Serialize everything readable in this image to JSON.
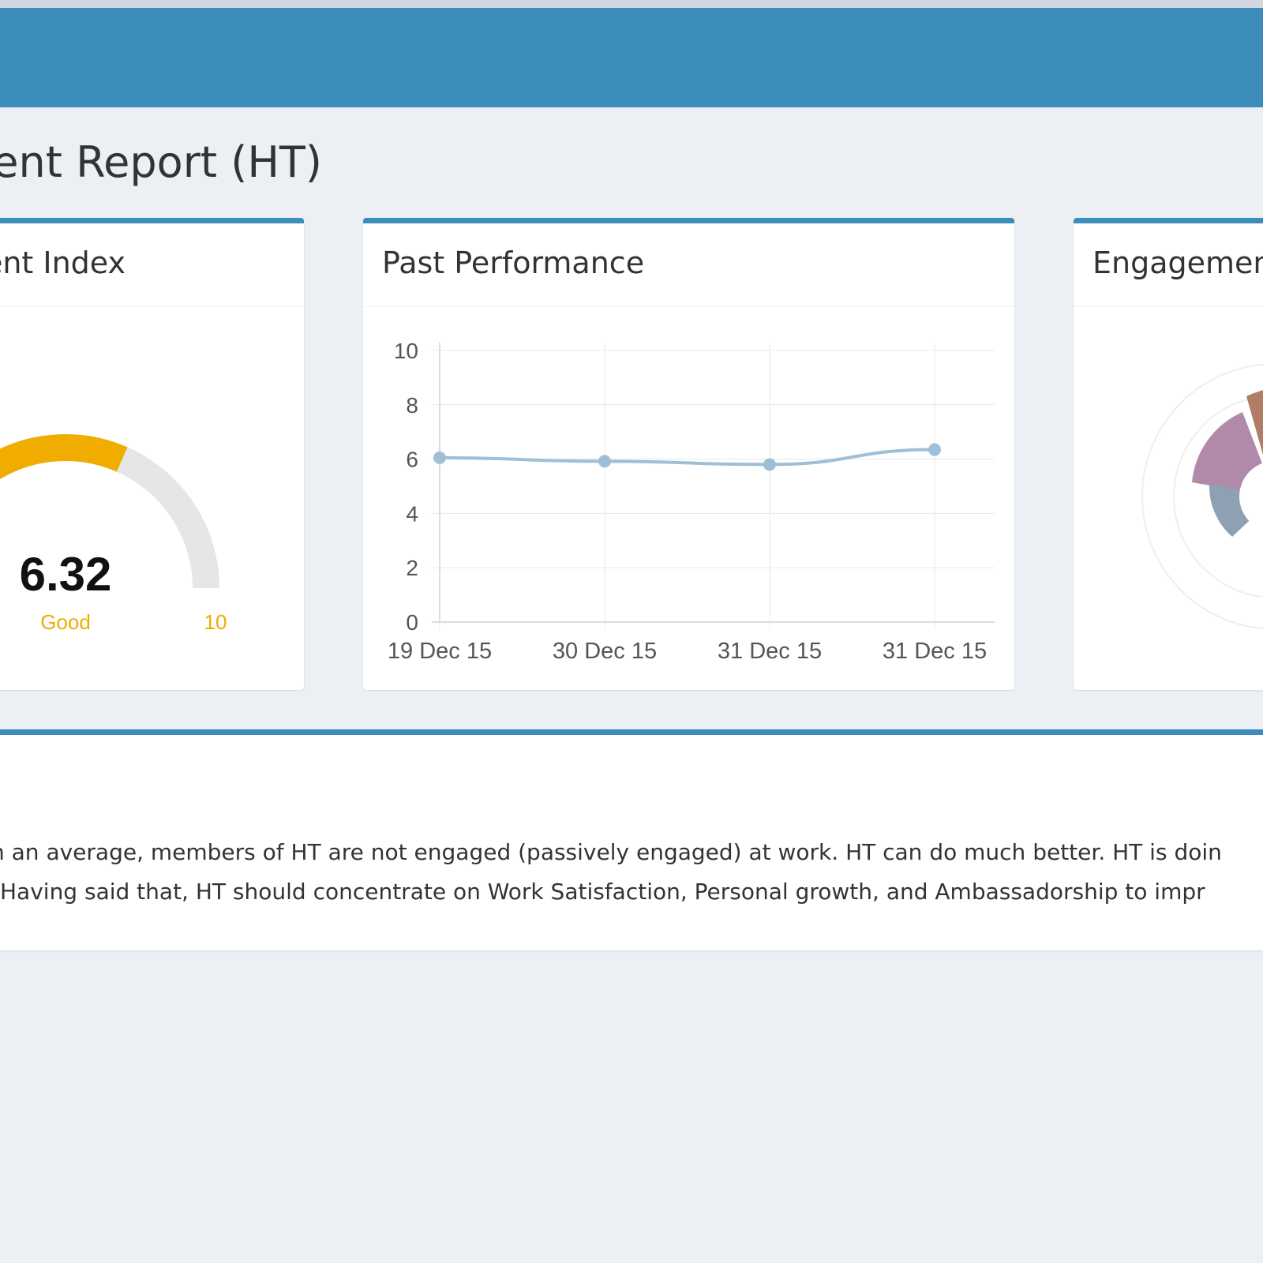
{
  "header": {
    "page_title": "nent Report (HT)",
    "accent_color": "#3c8dbc"
  },
  "gauge_box": {
    "title": "ent Index",
    "value": "6.32",
    "rating": "Good",
    "max_label": "10",
    "value_fraction": 0.632,
    "fill_color": "#f0ad00"
  },
  "performance_box": {
    "title": "Past Performance"
  },
  "radar_box": {
    "title": "Engagemen"
  },
  "summary": {
    "line1": "n an average, members of HT are not engaged (passively engaged) at work. HT can do much better. HT is doin",
    "line2": " Having said that, HT should concentrate on Work Satisfaction, Personal growth, and Ambassadorship to impr"
  },
  "chart_data": {
    "type": "line",
    "categories": [
      "19 Dec 15",
      "30 Dec 15",
      "31 Dec 15",
      "31 Dec 15"
    ],
    "series": [
      {
        "values": [
          6.05,
          5.92,
          5.8,
          6.35
        ],
        "color": "#9ebfd6"
      }
    ],
    "title": "Past Performance",
    "xlabel": "",
    "ylabel": "",
    "ylim": [
      0,
      10
    ],
    "yticks": [
      "0",
      "2",
      "4",
      "6",
      "8",
      "10"
    ],
    "grid": true
  }
}
